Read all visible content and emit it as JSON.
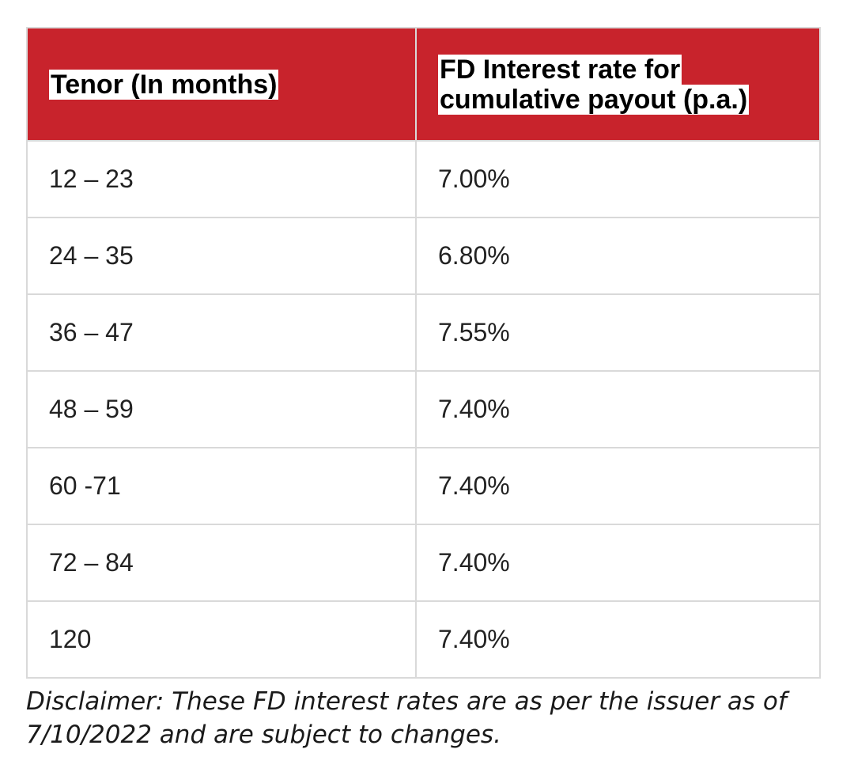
{
  "table": {
    "header": {
      "tenor": "Tenor (In months)",
      "rate": "FD Interest rate for\ncumulative payout (p.a.)"
    },
    "rows": [
      {
        "tenor": "12 – 23",
        "rate": "7.00%"
      },
      {
        "tenor": "24 – 35",
        "rate": "6.80%"
      },
      {
        "tenor": "36 – 47",
        "rate": "7.55%"
      },
      {
        "tenor": "48 – 59",
        "rate": "7.40%"
      },
      {
        "tenor": "60 -71",
        "rate": "7.40%"
      },
      {
        "tenor": "72 – 84",
        "rate": "7.40%"
      },
      {
        "tenor": "120",
        "rate": "7.40%"
      }
    ]
  },
  "disclaimer": "Disclaimer: These FD interest rates are as per the issuer as of 7/10/2022 and are subject to changes.",
  "colors": {
    "header_bg": "#c8232c",
    "border": "#d9d9d9"
  }
}
